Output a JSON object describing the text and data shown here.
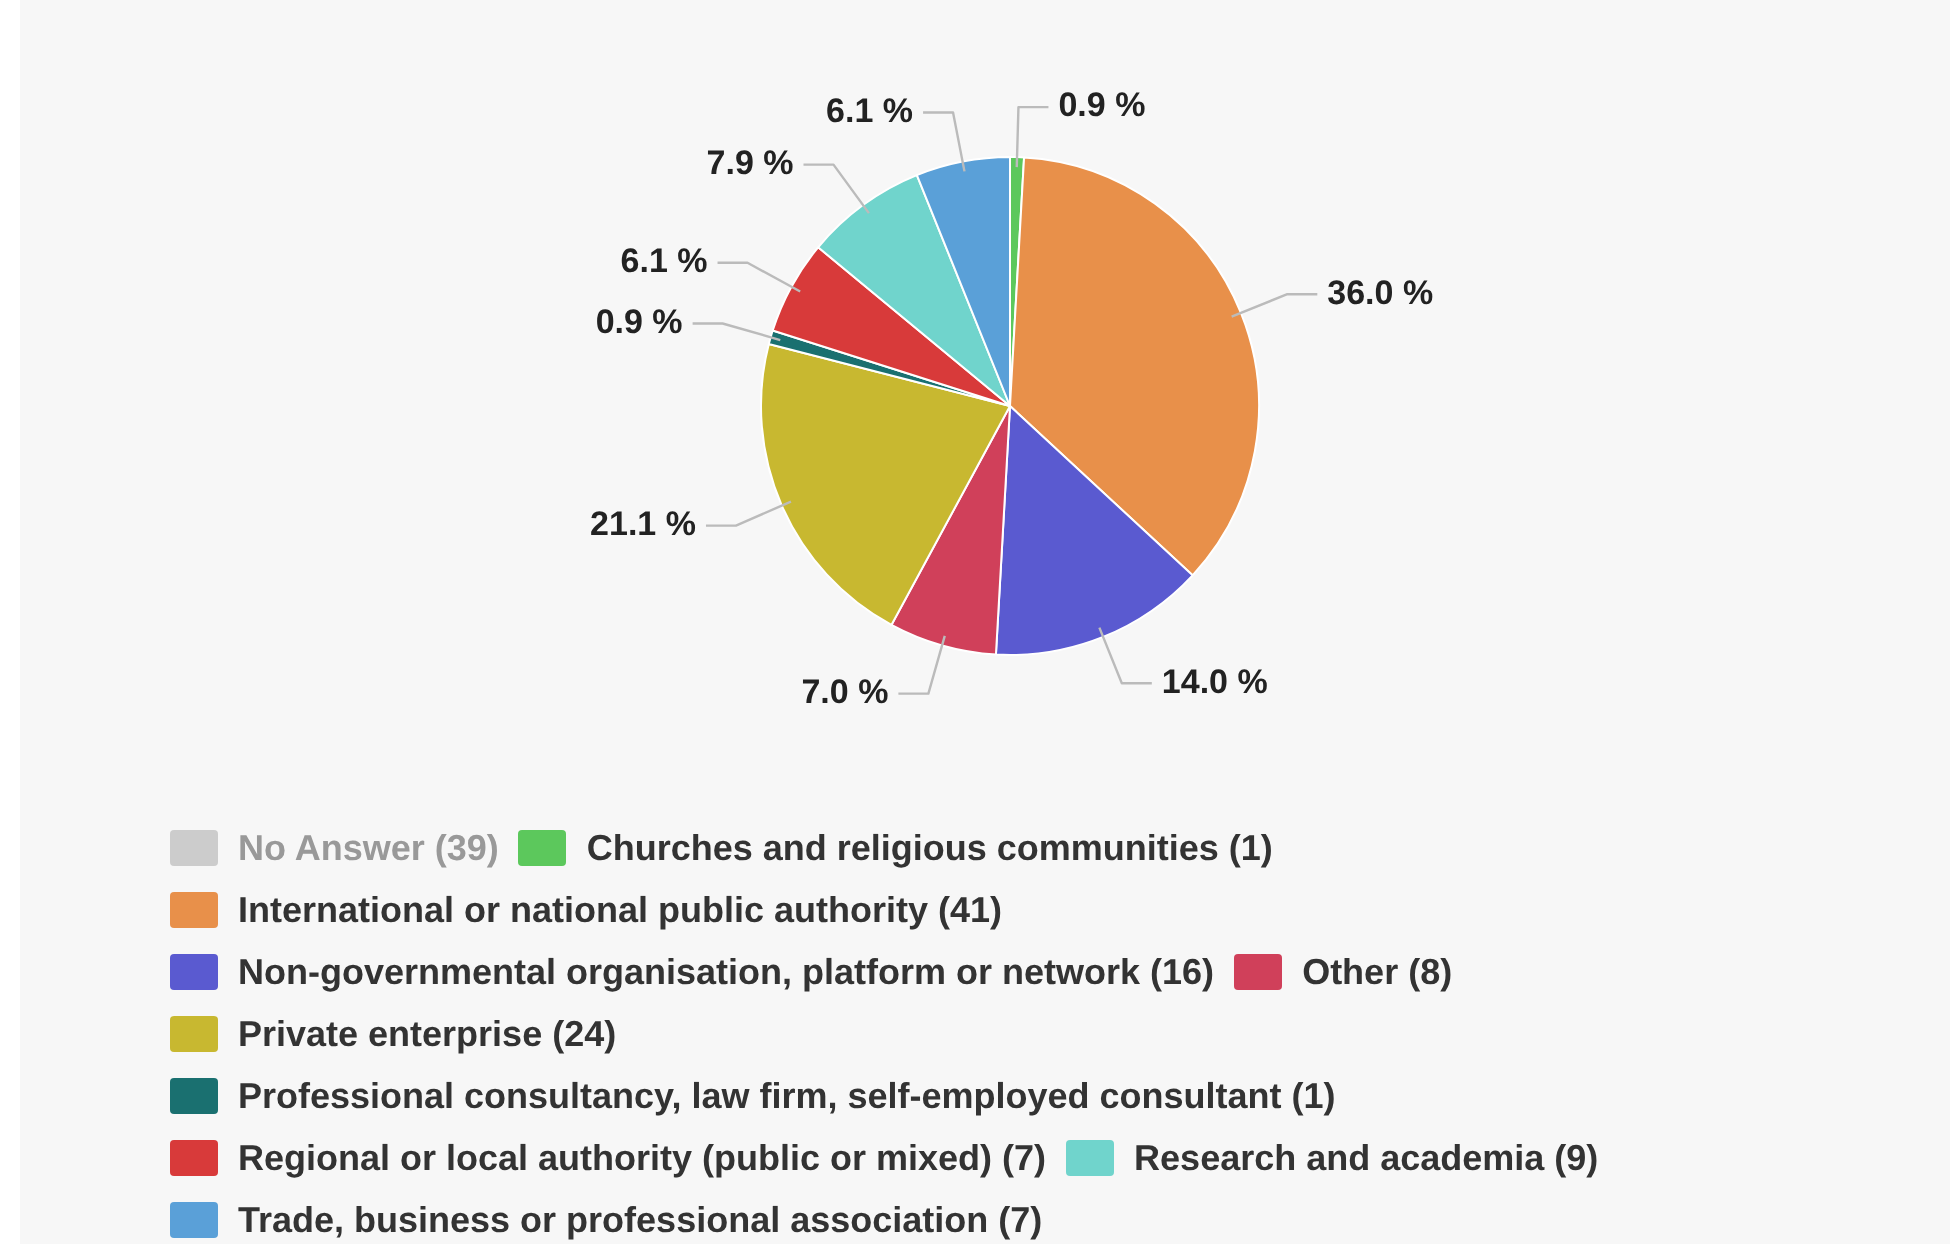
{
  "chart_data": {
    "type": "pie",
    "categories": [
      "No Answer (39)",
      "Churches and religious communities (1)",
      "International or national public authority (41)",
      "Non-governmental organisation, platform or network (16)",
      "Other (8)",
      "Private enterprise (24)",
      "Professional consultancy, law firm, self-employed consultant (1)",
      "Regional or local authority (public or mixed) (7)",
      "Research and academia (9)",
      "Trade, business or professional association (7)"
    ],
    "values": [
      null,
      0.9,
      36.0,
      14.0,
      7.0,
      21.1,
      0.9,
      6.1,
      7.9,
      6.1
    ],
    "value_labels": [
      null,
      "0.9 %",
      "36.0 %",
      "14.0 %",
      "7.0 %",
      "21.1 %",
      "0.9 %",
      "6.1 %",
      "7.9 %",
      "6.1 %"
    ],
    "colors": [
      "#cccccc",
      "#5cc85c",
      "#e8904a",
      "#5a5ad0",
      "#d0405a",
      "#c8b830",
      "#1a7070",
      "#d83a3a",
      "#70d4cc",
      "#5aa0d8"
    ],
    "legend": "bottom"
  }
}
